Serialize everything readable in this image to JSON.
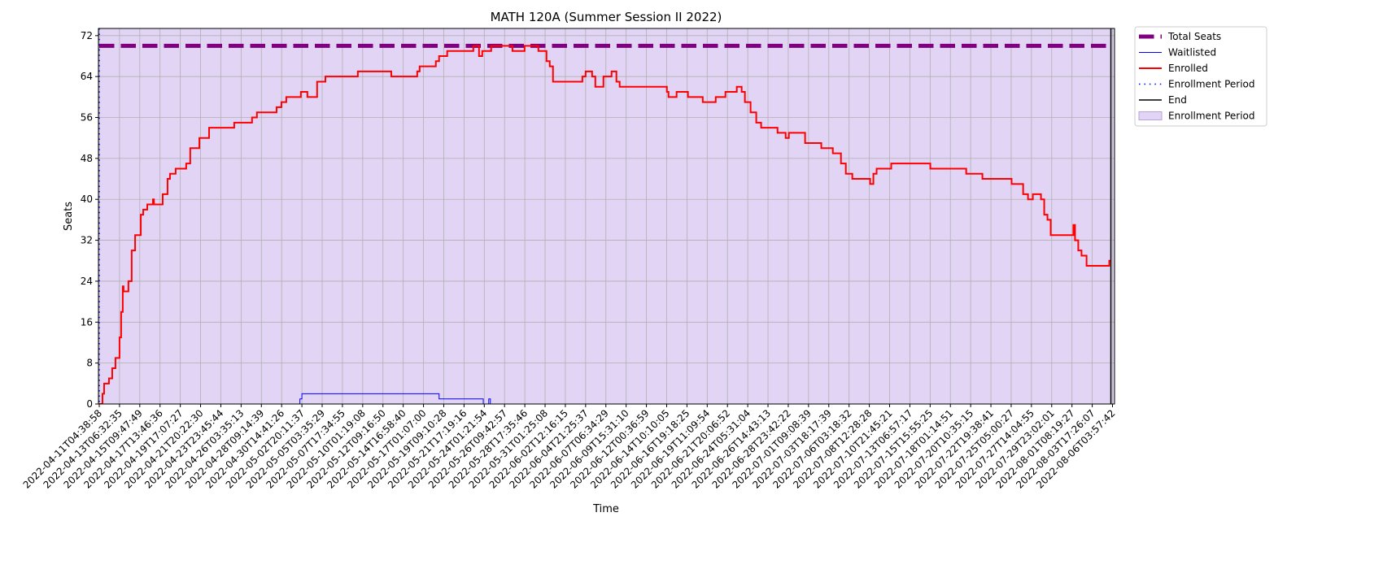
{
  "chart_data": {
    "type": "line",
    "title": "MATH 120A (Summer Session II 2022)",
    "xlabel": "Time",
    "ylabel": "Seats",
    "drawstyle": "steps-post",
    "grid": true,
    "legend": "outside upper right",
    "background": "#ffffff",
    "xlim": [
      -0.04,
      50.1
    ],
    "ylim": [
      0,
      73.4
    ],
    "yticks": [
      0,
      8,
      16,
      24,
      32,
      40,
      48,
      56,
      64,
      72
    ],
    "xticks": [
      {
        "value": 0,
        "label": "2022-04-11T04:38:58"
      },
      {
        "value": 1,
        "label": "2022-04-13T06:32:35"
      },
      {
        "value": 2,
        "label": "2022-04-15T09:47:49"
      },
      {
        "value": 3,
        "label": "2022-04-17T13:46:36"
      },
      {
        "value": 4,
        "label": "2022-04-19T17:07:27"
      },
      {
        "value": 5,
        "label": "2022-04-21T20:22:30"
      },
      {
        "value": 6,
        "label": "2022-04-23T23:45:44"
      },
      {
        "value": 7,
        "label": "2022-04-26T03:35:13"
      },
      {
        "value": 8,
        "label": "2022-04-28T09:14:39"
      },
      {
        "value": 9,
        "label": "2022-04-30T14:41:26"
      },
      {
        "value": 10,
        "label": "2022-05-02T20:11:37"
      },
      {
        "value": 11,
        "label": "2022-05-05T03:35:29"
      },
      {
        "value": 12,
        "label": "2022-05-07T17:34:55"
      },
      {
        "value": 13,
        "label": "2022-05-10T01:19:08"
      },
      {
        "value": 14,
        "label": "2022-05-12T09:16:50"
      },
      {
        "value": 15,
        "label": "2022-05-14T16:58:40"
      },
      {
        "value": 16,
        "label": "2022-05-17T01:07:00"
      },
      {
        "value": 17,
        "label": "2022-05-19T09:10:28"
      },
      {
        "value": 18,
        "label": "2022-05-21T17:19:16"
      },
      {
        "value": 19,
        "label": "2022-05-24T01:21:54"
      },
      {
        "value": 20,
        "label": "2022-05-26T09:42:57"
      },
      {
        "value": 21,
        "label": "2022-05-28T17:35:46"
      },
      {
        "value": 22,
        "label": "2022-05-31T01:25:08"
      },
      {
        "value": 23,
        "label": "2022-06-02T12:16:15"
      },
      {
        "value": 24,
        "label": "2022-06-04T21:25:37"
      },
      {
        "value": 25,
        "label": "2022-06-07T06:34:29"
      },
      {
        "value": 26,
        "label": "2022-06-09T15:31:10"
      },
      {
        "value": 27,
        "label": "2022-06-12T00:36:59"
      },
      {
        "value": 28,
        "label": "2022-06-14T10:10:05"
      },
      {
        "value": 29,
        "label": "2022-06-16T19:18:25"
      },
      {
        "value": 30,
        "label": "2022-06-19T11:09:54"
      },
      {
        "value": 31,
        "label": "2022-06-21T20:06:52"
      },
      {
        "value": 32,
        "label": "2022-06-24T05:31:04"
      },
      {
        "value": 33,
        "label": "2022-06-26T14:43:13"
      },
      {
        "value": 34,
        "label": "2022-06-28T23:42:22"
      },
      {
        "value": 35,
        "label": "2022-07-01T09:08:39"
      },
      {
        "value": 36,
        "label": "2022-07-03T18:17:39"
      },
      {
        "value": 37,
        "label": "2022-07-06T03:18:32"
      },
      {
        "value": 38,
        "label": "2022-07-08T12:28:28"
      },
      {
        "value": 39,
        "label": "2022-07-10T21:45:21"
      },
      {
        "value": 40,
        "label": "2022-07-13T06:57:17"
      },
      {
        "value": 41,
        "label": "2022-07-15T15:55:25"
      },
      {
        "value": 42,
        "label": "2022-07-18T01:14:51"
      },
      {
        "value": 43,
        "label": "2022-07-20T10:35:15"
      },
      {
        "value": 44,
        "label": "2022-07-22T19:38:41"
      },
      {
        "value": 45,
        "label": "2022-07-25T05:00:27"
      },
      {
        "value": 46,
        "label": "2022-07-27T14:04:55"
      },
      {
        "value": 47,
        "label": "2022-07-29T23:02:01"
      },
      {
        "value": 48,
        "label": "2022-08-01T08:19:27"
      },
      {
        "value": 49,
        "label": "2022-08-03T17:26:07"
      },
      {
        "value": 50,
        "label": "2022-08-06T03:57:42"
      }
    ],
    "series": [
      {
        "name": "Enrollment Period",
        "kind": "span",
        "color": "#e2d4f5",
        "x": [
          -0.04,
          50.1
        ]
      },
      {
        "name": "Total Seats",
        "kind": "line",
        "color": "#800080",
        "linewidth": 5,
        "linestyle": "dashed",
        "x": [
          0,
          49.92
        ],
        "values": [
          70,
          70
        ]
      },
      {
        "name": "Waitlisted",
        "kind": "line",
        "color": "#0000ff",
        "linewidth": 1,
        "linestyle": "solid",
        "x": [
          0,
          9.9,
          10.0,
          16.77,
          18.95,
          19.22,
          19.3,
          49.92
        ],
        "values": [
          0,
          1,
          2,
          1,
          0,
          1,
          0,
          0
        ]
      },
      {
        "name": "Enrolled",
        "kind": "line",
        "color": "#ff0000",
        "linewidth": 2,
        "linestyle": "solid",
        "x": [
          0,
          0.16,
          0.24,
          0.48,
          0.64,
          0.8,
          1.0,
          1.08,
          1.16,
          1.2,
          1.44,
          1.6,
          1.77,
          2.05,
          2.17,
          2.37,
          2.65,
          2.7,
          3.13,
          3.37,
          3.49,
          3.77,
          4.29,
          4.49,
          4.94,
          5.42,
          6.66,
          7.54,
          7.78,
          8.75,
          8.99,
          9.23,
          9.95,
          10.27,
          10.75,
          11.16,
          12.76,
          14.41,
          15.69,
          15.81,
          16.61,
          16.77,
          17.17,
          18.46,
          18.74,
          18.9,
          19.34,
          20.39,
          20.99,
          21.67,
          22.07,
          22.23,
          22.39,
          23.84,
          24.0,
          24.32,
          24.48,
          24.88,
          25.28,
          25.52,
          25.68,
          28.01,
          28.09,
          28.49,
          29.05,
          29.78,
          30.42,
          30.9,
          31.46,
          31.7,
          31.86,
          32.14,
          32.42,
          32.66,
          33.47,
          33.87,
          34.03,
          34.83,
          35.63,
          36.2,
          36.6,
          36.84,
          37.16,
          38.04,
          38.2,
          38.36,
          39.08,
          41.01,
          42.78,
          43.58,
          45.02,
          45.59,
          45.83,
          46.07,
          46.47,
          46.63,
          46.79,
          46.95,
          48.07,
          48.15,
          48.31,
          48.47,
          48.72,
          49.84,
          49.92
        ],
        "values": [
          0,
          2,
          4,
          5,
          7,
          9,
          13,
          18,
          23,
          22,
          24,
          30,
          33,
          37,
          38,
          39,
          40,
          39,
          41,
          44,
          45,
          46,
          47,
          50,
          52,
          54,
          55,
          56,
          57,
          58,
          59,
          60,
          61,
          60,
          63,
          64,
          65,
          64,
          65,
          66,
          67,
          68,
          69,
          70,
          68,
          69,
          70,
          69,
          70,
          69,
          67,
          66,
          63,
          64,
          65,
          64,
          62,
          64,
          65,
          63,
          62,
          61,
          60,
          61,
          60,
          59,
          60,
          61,
          62,
          61,
          59,
          57,
          55,
          54,
          53,
          52,
          53,
          51,
          50,
          49,
          47,
          45,
          44,
          43,
          45,
          46,
          47,
          46,
          45,
          44,
          43,
          41,
          40,
          41,
          40,
          37,
          36,
          33,
          35,
          32,
          30,
          29,
          27,
          28,
          28
        ]
      },
      {
        "name": "Enrollment Period",
        "kind": "vline",
        "color": "#0000ff",
        "linewidth": 1.5,
        "linestyle": "dotted",
        "x": [
          0
        ]
      },
      {
        "name": "End",
        "kind": "vline",
        "color": "#000000",
        "linewidth": 1.5,
        "linestyle": "solid",
        "x": [
          49.92
        ]
      }
    ]
  }
}
